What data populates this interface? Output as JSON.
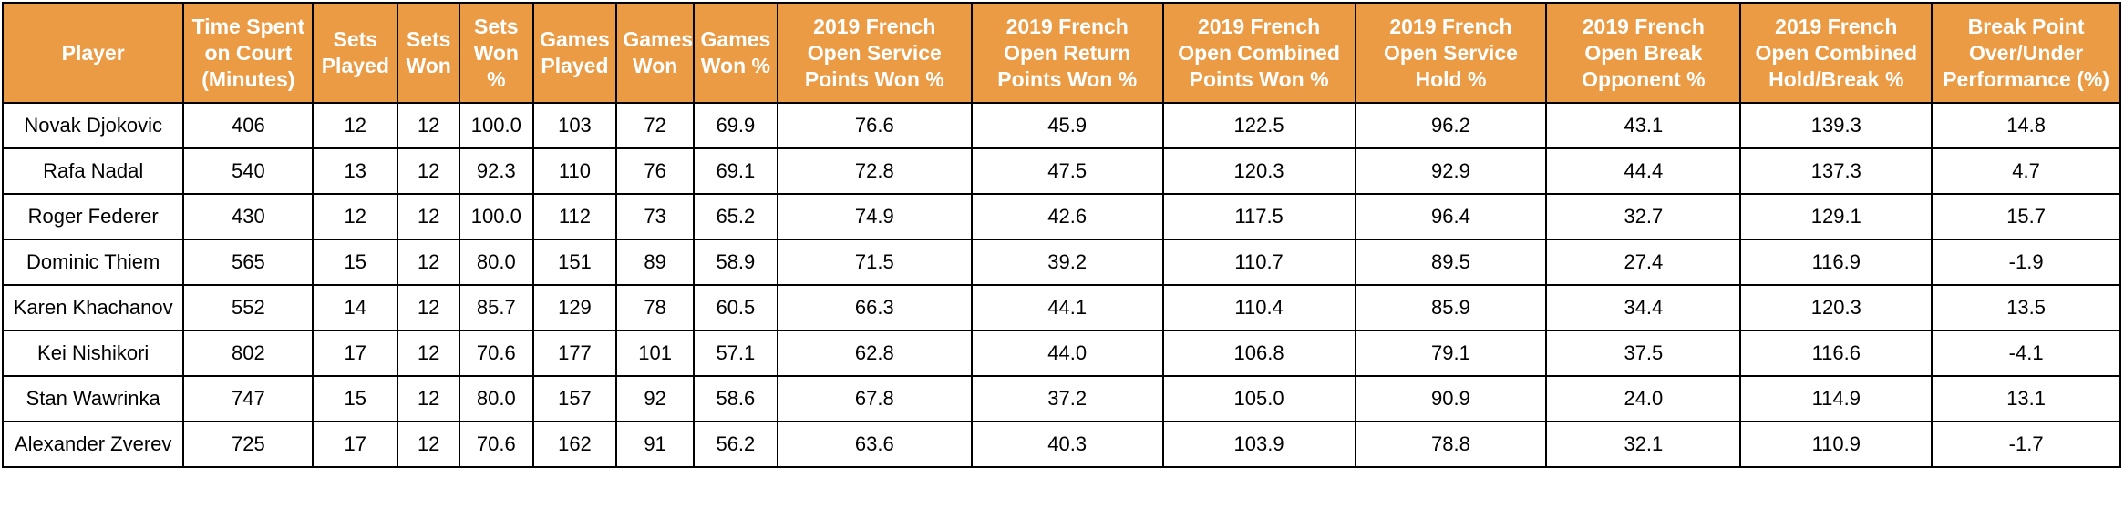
{
  "chart_data": {
    "type": "table",
    "columns": [
      "Player",
      "Time Spent on Court (Minutes)",
      "Sets Played",
      "Sets Won",
      "Sets Won %",
      "Games Played",
      "Games Won",
      "Games Won %",
      "2019 French Open Service Points Won %",
      "2019 French Open Return Points Won %",
      "2019 French Open Combined Points Won %",
      "2019 French Open Service Hold %",
      "2019 French Open Break Opponent %",
      "2019 French Open Combined Hold/Break %",
      "Break Point Over/Under Performance (%)"
    ],
    "rows": [
      [
        "Novak Djokovic",
        "406",
        "12",
        "12",
        "100.0",
        "103",
        "72",
        "69.9",
        "76.6",
        "45.9",
        "122.5",
        "96.2",
        "43.1",
        "139.3",
        "14.8"
      ],
      [
        "Rafa Nadal",
        "540",
        "13",
        "12",
        "92.3",
        "110",
        "76",
        "69.1",
        "72.8",
        "47.5",
        "120.3",
        "92.9",
        "44.4",
        "137.3",
        "4.7"
      ],
      [
        "Roger Federer",
        "430",
        "12",
        "12",
        "100.0",
        "112",
        "73",
        "65.2",
        "74.9",
        "42.6",
        "117.5",
        "96.4",
        "32.7",
        "129.1",
        "15.7"
      ],
      [
        "Dominic Thiem",
        "565",
        "15",
        "12",
        "80.0",
        "151",
        "89",
        "58.9",
        "71.5",
        "39.2",
        "110.7",
        "89.5",
        "27.4",
        "116.9",
        "-1.9"
      ],
      [
        "Karen Khachanov",
        "552",
        "14",
        "12",
        "85.7",
        "129",
        "78",
        "60.5",
        "66.3",
        "44.1",
        "110.4",
        "85.9",
        "34.4",
        "120.3",
        "13.5"
      ],
      [
        "Kei Nishikori",
        "802",
        "17",
        "12",
        "70.6",
        "177",
        "101",
        "57.1",
        "62.8",
        "44.0",
        "106.8",
        "79.1",
        "37.5",
        "116.6",
        "-4.1"
      ],
      [
        "Stan Wawrinka",
        "747",
        "15",
        "12",
        "80.0",
        "157",
        "92",
        "58.6",
        "67.8",
        "37.2",
        "105.0",
        "90.9",
        "24.0",
        "114.9",
        "13.1"
      ],
      [
        "Alexander Zverev",
        "725",
        "17",
        "12",
        "70.6",
        "162",
        "91",
        "56.2",
        "63.6",
        "40.3",
        "103.9",
        "78.8",
        "32.1",
        "110.9",
        "-1.7"
      ]
    ]
  },
  "colors": {
    "header_background": "#eb9b44",
    "header_text": "#ffffff",
    "border": "#000000",
    "cell_text": "#000000"
  }
}
